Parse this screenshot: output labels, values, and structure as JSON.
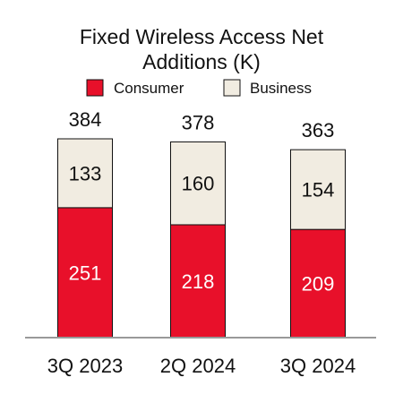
{
  "colors": {
    "consumer": "#e8102a",
    "business": "#f1ece1",
    "bar_outline": "#111111",
    "baseline": "#999999"
  },
  "chart_data": {
    "type": "bar",
    "stacked": true,
    "title_lines": [
      "Fixed Wireless Access Net",
      "Additions (K)"
    ],
    "categories": [
      "3Q 2023",
      "2Q 2024",
      "3Q 2024"
    ],
    "series": [
      {
        "name": "Consumer",
        "values": [
          251,
          218,
          209
        ]
      },
      {
        "name": "Business",
        "values": [
          133,
          160,
          154
        ]
      }
    ],
    "totals": [
      384,
      378,
      363
    ],
    "legend_position": "top",
    "grid": false,
    "ylim": [
      0,
      384
    ]
  }
}
